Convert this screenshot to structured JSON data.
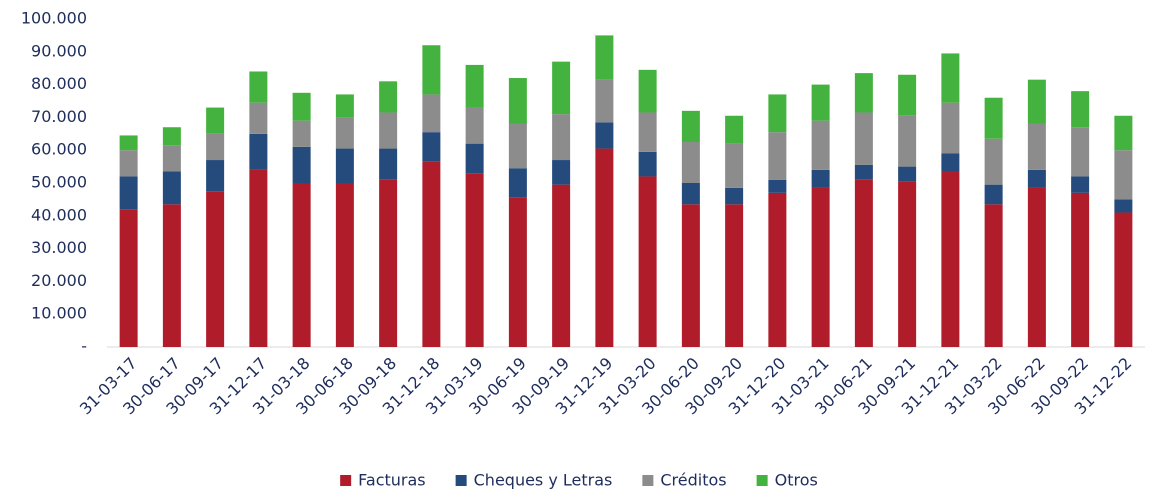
{
  "chart_data": {
    "type": "stacked_bar",
    "categories": [
      "31-03-17",
      "30-06-17",
      "30-09-17",
      "31-12-17",
      "31-03-18",
      "30-06-18",
      "30-09-18",
      "31-12-18",
      "31-03-19",
      "30-06-19",
      "30-09-19",
      "31-12-19",
      "31-03-20",
      "30-06-20",
      "30-09-20",
      "31-12-20",
      "31-03-21",
      "30-06-21",
      "30-09-21",
      "31-12-21",
      "31-03-22",
      "30-06-22",
      "30-09-22",
      "31-12-22"
    ],
    "series": [
      {
        "name": "Facturas",
        "color": "#b01c2a",
        "values": [
          42000,
          43500,
          47500,
          54000,
          50000,
          50000,
          51000,
          56500,
          53000,
          45500,
          49500,
          60500,
          52000,
          43500,
          43500,
          47000,
          48500,
          51000,
          50500,
          53500,
          43500,
          48500,
          47000,
          41000
        ]
      },
      {
        "name": "Cheques y Letras",
        "color": "#254a7c",
        "values": [
          10000,
          10000,
          9500,
          11000,
          11000,
          10500,
          9500,
          9000,
          9000,
          9000,
          7500,
          8000,
          7500,
          6500,
          5000,
          4000,
          5500,
          4500,
          4500,
          5500,
          6000,
          5500,
          5000,
          4000
        ]
      },
      {
        "name": "Créditos",
        "color": "#8c8c8c",
        "values": [
          8000,
          8000,
          8000,
          9500,
          8000,
          9500,
          11000,
          11500,
          11000,
          13500,
          14000,
          13000,
          12000,
          12500,
          13500,
          14500,
          15000,
          16000,
          15500,
          15500,
          14000,
          14000,
          15000,
          15000
        ]
      },
      {
        "name": "Otros",
        "color": "#44b23e",
        "values": [
          4500,
          5500,
          8000,
          9500,
          8500,
          7000,
          9500,
          15000,
          13000,
          14000,
          16000,
          13500,
          13000,
          9500,
          8500,
          11500,
          11000,
          12000,
          12500,
          15000,
          12500,
          13500,
          11000,
          10500
        ]
      }
    ],
    "ylim": [
      0,
      100000
    ],
    "yticks": [
      {
        "value": 0,
        "label": "-"
      },
      {
        "value": 10000,
        "label": "10.000"
      },
      {
        "value": 20000,
        "label": "20.000"
      },
      {
        "value": 30000,
        "label": "30.000"
      },
      {
        "value": 40000,
        "label": "40.000"
      },
      {
        "value": 50000,
        "label": "50.000"
      },
      {
        "value": 60000,
        "label": "60.000"
      },
      {
        "value": 70000,
        "label": "70.000"
      },
      {
        "value": 80000,
        "label": "80.000"
      },
      {
        "value": 90000,
        "label": "90.000"
      },
      {
        "value": 100000,
        "label": "100.000"
      }
    ],
    "grid": false,
    "legend": "bottom"
  }
}
